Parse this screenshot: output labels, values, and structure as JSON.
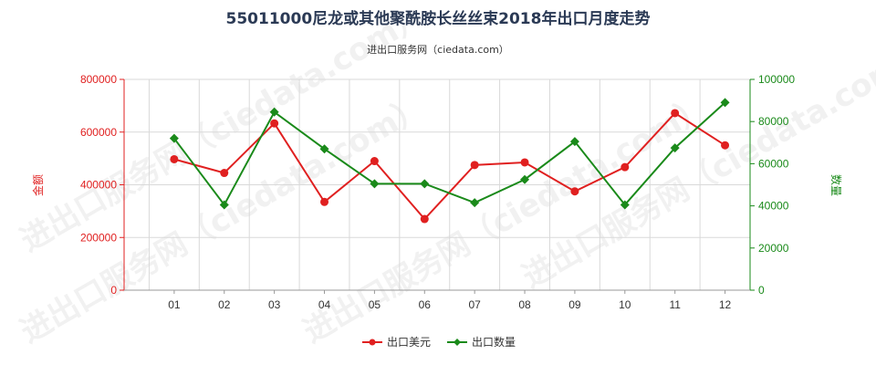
{
  "chart_data": {
    "type": "line",
    "title": "55011000尼龙或其他聚酰胺长丝丝束2018年出口月度走势",
    "subtitle": "进出口服务网（ciedata.com）",
    "categories": [
      "01",
      "02",
      "03",
      "04",
      "05",
      "06",
      "07",
      "08",
      "09",
      "10",
      "11",
      "12"
    ],
    "y_left": {
      "label": "金额",
      "ylim": [
        0,
        800000
      ],
      "ticks": [
        0,
        200000,
        400000,
        600000,
        800000
      ],
      "color": "#e02020"
    },
    "y_right": {
      "label": "数量",
      "ylim": [
        0,
        100000
      ],
      "ticks": [
        0,
        20000,
        40000,
        60000,
        80000,
        100000
      ],
      "color": "#1a8a1a"
    },
    "series": [
      {
        "name": "出口美元",
        "axis": "left",
        "color": "#e02020",
        "marker": "circle",
        "values": [
          497000,
          445000,
          633000,
          335000,
          490000,
          270000,
          475000,
          485000,
          375000,
          467000,
          672000,
          550000
        ]
      },
      {
        "name": "出口数量",
        "axis": "right",
        "color": "#1a8a1a",
        "marker": "diamond",
        "values": [
          72000,
          40500,
          84500,
          67000,
          50500,
          50500,
          41500,
          52500,
          70500,
          40500,
          67500,
          89000
        ]
      }
    ],
    "grid": true,
    "legend_position": "bottom-center"
  }
}
